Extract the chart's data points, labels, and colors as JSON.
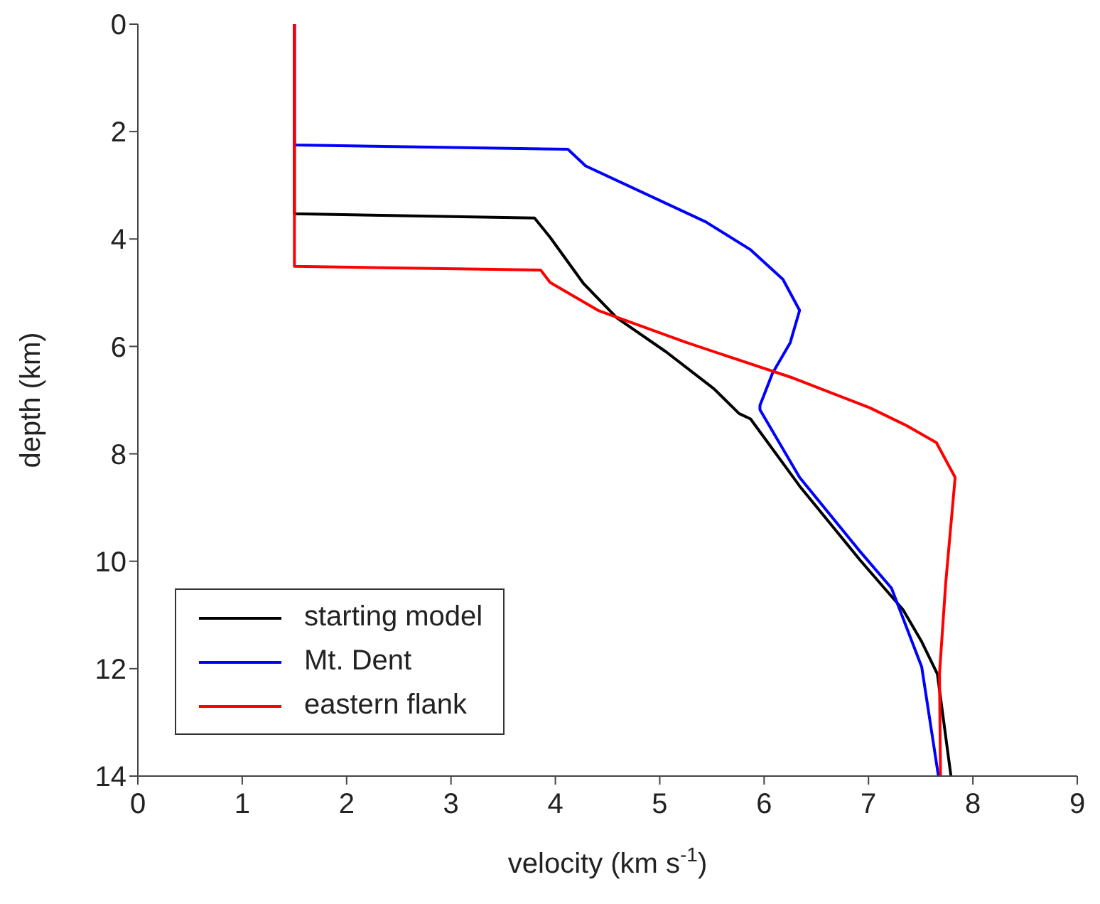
{
  "chart_data": {
    "type": "line",
    "xlabel": "velocity (km s$^{-1}$)",
    "ylabel": "depth (km)",
    "xlim": [
      0,
      9
    ],
    "xticks": [
      0,
      1,
      2,
      3,
      4,
      5,
      6,
      7,
      8,
      9
    ],
    "ylim": [
      14,
      0
    ],
    "yticks": [
      0,
      2,
      4,
      6,
      8,
      10,
      12,
      14
    ],
    "legend": "bottom left",
    "marker": "none",
    "line_style": "solid",
    "series": [
      {
        "name": "starting model",
        "color": "#000000",
        "x": [
          1.5,
          1.5,
          3.8,
          3.95,
          4.27,
          4.59,
          5.06,
          5.52,
          5.76,
          5.87,
          6.34,
          6.92,
          7.33,
          7.51,
          7.66,
          7.79
        ],
        "values": [
          0,
          3.53,
          3.61,
          3.97,
          4.83,
          5.47,
          6.1,
          6.79,
          7.25,
          7.35,
          8.6,
          9.98,
          10.9,
          11.5,
          12.1,
          14
        ]
      },
      {
        "name": "Mt. Dent",
        "color": "#0000ff",
        "x": [
          1.5,
          1.5,
          4.12,
          4.29,
          5.44,
          5.87,
          6.18,
          6.34,
          6.25,
          6.08,
          5.96,
          5.96,
          6.34,
          6.92,
          7.22,
          7.51,
          7.67
        ],
        "values": [
          0,
          2.25,
          2.33,
          2.64,
          3.68,
          4.2,
          4.75,
          5.33,
          5.93,
          6.5,
          7.1,
          7.18,
          8.44,
          9.82,
          10.5,
          11.97,
          14
        ]
      },
      {
        "name": "eastern flank",
        "color": "#ff0000",
        "x": [
          1.5,
          1.5,
          3.86,
          3.95,
          4.41,
          5.26,
          6.28,
          7.01,
          7.36,
          7.65,
          7.83,
          7.74,
          7.68,
          7.69
        ],
        "values": [
          0,
          4.51,
          4.58,
          4.81,
          5.33,
          5.93,
          6.59,
          7.14,
          7.47,
          7.79,
          8.44,
          10.4,
          12.1,
          14
        ]
      }
    ]
  }
}
